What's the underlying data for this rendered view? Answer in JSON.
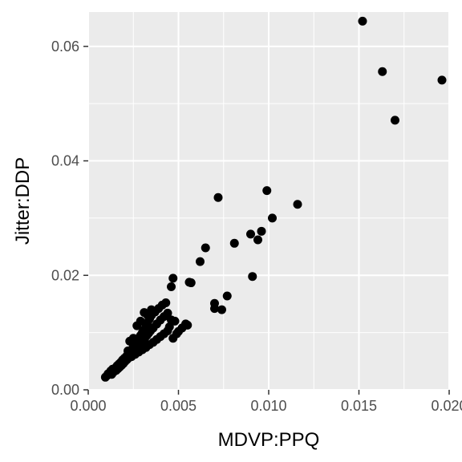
{
  "chart_data": {
    "type": "scatter",
    "xlabel": "MDVP:PPQ",
    "ylabel": "Jitter:DDP",
    "xlim": [
      0.0,
      0.02
    ],
    "ylim": [
      0.0,
      0.066
    ],
    "x_ticks": [
      0.0,
      0.005,
      0.01,
      0.015,
      0.02
    ],
    "x_tick_labels": [
      "0.000",
      "0.005",
      "0.010",
      "0.015",
      "0.020"
    ],
    "y_ticks": [
      0.0,
      0.02,
      0.04,
      0.06
    ],
    "y_tick_labels": [
      "0.00",
      "0.02",
      "0.04",
      "0.06"
    ],
    "grid": true,
    "colors": {
      "panel": "#ebebeb",
      "grid": "#ffffff",
      "point": "#000000"
    },
    "series": [
      {
        "points": [
          [
            0.00095,
            0.0022
          ],
          [
            0.00105,
            0.0025
          ],
          [
            0.0011,
            0.0028
          ],
          [
            0.0012,
            0.003
          ],
          [
            0.00125,
            0.0033
          ],
          [
            0.0013,
            0.0027
          ],
          [
            0.00135,
            0.0036
          ],
          [
            0.0014,
            0.0031
          ],
          [
            0.0015,
            0.0038
          ],
          [
            0.00155,
            0.0034
          ],
          [
            0.0016,
            0.0042
          ],
          [
            0.00165,
            0.0037
          ],
          [
            0.0017,
            0.0045
          ],
          [
            0.00175,
            0.004
          ],
          [
            0.0018,
            0.0048
          ],
          [
            0.00185,
            0.0043
          ],
          [
            0.0019,
            0.0052
          ],
          [
            0.00195,
            0.0046
          ],
          [
            0.002,
            0.0055
          ],
          [
            0.00205,
            0.005
          ],
          [
            0.0021,
            0.0058
          ],
          [
            0.00215,
            0.0053
          ],
          [
            0.0022,
            0.0062
          ],
          [
            0.00225,
            0.0056
          ],
          [
            0.0023,
            0.0066
          ],
          [
            0.00235,
            0.006
          ],
          [
            0.0024,
            0.007
          ],
          [
            0.00245,
            0.0063
          ],
          [
            0.0025,
            0.0075
          ],
          [
            0.00255,
            0.0067
          ],
          [
            0.0026,
            0.008
          ],
          [
            0.00265,
            0.0071
          ],
          [
            0.0027,
            0.0085
          ],
          [
            0.00275,
            0.0075
          ],
          [
            0.0028,
            0.009
          ],
          [
            0.00285,
            0.0079
          ],
          [
            0.0029,
            0.0095
          ],
          [
            0.00295,
            0.0083
          ],
          [
            0.003,
            0.01
          ],
          [
            0.00305,
            0.0087
          ],
          [
            0.0031,
            0.0105
          ],
          [
            0.00315,
            0.0091
          ],
          [
            0.0032,
            0.0112
          ],
          [
            0.00325,
            0.0095
          ],
          [
            0.0033,
            0.0118
          ],
          [
            0.00335,
            0.0099
          ],
          [
            0.0034,
            0.0124
          ],
          [
            0.00345,
            0.0103
          ],
          [
            0.0035,
            0.013
          ],
          [
            0.0036,
            0.0108
          ],
          [
            0.0037,
            0.0136
          ],
          [
            0.0038,
            0.0115
          ],
          [
            0.0039,
            0.0142
          ],
          [
            0.004,
            0.0122
          ],
          [
            0.0041,
            0.0148
          ],
          [
            0.0042,
            0.0128
          ],
          [
            0.0043,
            0.0152
          ],
          [
            0.0044,
            0.0134
          ],
          [
            0.0023,
            0.0085
          ],
          [
            0.0025,
            0.009
          ],
          [
            0.0027,
            0.0112
          ],
          [
            0.0029,
            0.012
          ],
          [
            0.0031,
            0.0135
          ],
          [
            0.0033,
            0.013
          ],
          [
            0.0035,
            0.014
          ],
          [
            0.0022,
            0.0068
          ],
          [
            0.0024,
            0.0058
          ],
          [
            0.0026,
            0.0062
          ],
          [
            0.0028,
            0.0066
          ],
          [
            0.003,
            0.007
          ],
          [
            0.0032,
            0.0074
          ],
          [
            0.0034,
            0.0079
          ],
          [
            0.0036,
            0.0083
          ],
          [
            0.0038,
            0.0088
          ],
          [
            0.004,
            0.0093
          ],
          [
            0.0042,
            0.0098
          ],
          [
            0.0044,
            0.0103
          ],
          [
            0.0045,
            0.011
          ],
          [
            0.0046,
            0.0122
          ],
          [
            0.0046,
            0.018
          ],
          [
            0.0047,
            0.0195
          ],
          [
            0.0048,
            0.012
          ],
          [
            0.0047,
            0.009
          ],
          [
            0.0049,
            0.0098
          ],
          [
            0.005,
            0.0102
          ],
          [
            0.0052,
            0.0108
          ],
          [
            0.0054,
            0.0115
          ],
          [
            0.0055,
            0.0113
          ],
          [
            0.0056,
            0.0188
          ],
          [
            0.0057,
            0.0187
          ],
          [
            0.0062,
            0.0224
          ],
          [
            0.0065,
            0.0248
          ],
          [
            0.007,
            0.0142
          ],
          [
            0.007,
            0.0151
          ],
          [
            0.0072,
            0.0336
          ],
          [
            0.0074,
            0.014
          ],
          [
            0.0077,
            0.0164
          ],
          [
            0.0081,
            0.0256
          ],
          [
            0.009,
            0.0272
          ],
          [
            0.0091,
            0.0198
          ],
          [
            0.0094,
            0.0262
          ],
          [
            0.0096,
            0.0277
          ],
          [
            0.0099,
            0.0348
          ],
          [
            0.0102,
            0.03
          ],
          [
            0.0116,
            0.0324
          ],
          [
            0.0152,
            0.0644
          ],
          [
            0.0163,
            0.0556
          ],
          [
            0.017,
            0.0471
          ],
          [
            0.0196,
            0.0541
          ]
        ]
      }
    ]
  }
}
